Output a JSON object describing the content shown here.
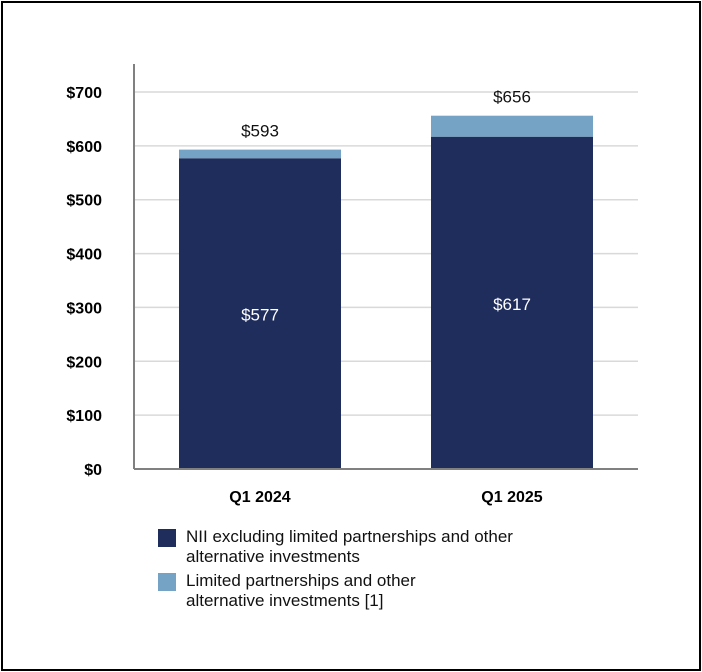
{
  "chart_data": {
    "type": "bar",
    "stacked": true,
    "categories": [
      "Q1 2024",
      "Q1 2025"
    ],
    "series": [
      {
        "name": "NII excluding limited partnerships and other alternative investments",
        "values": [
          577,
          617
        ],
        "color": "#1f2d5c",
        "labels": [
          "$577",
          "$617"
        ]
      },
      {
        "name": "Limited partnerships and other alternative investments [1]",
        "values": [
          16,
          39
        ],
        "color": "#75a3c5"
      }
    ],
    "totals": [
      593,
      656
    ],
    "total_labels": [
      "$593",
      "$656"
    ],
    "ylim": [
      0,
      700
    ],
    "yticks": [
      0,
      100,
      200,
      300,
      400,
      500,
      600,
      700
    ],
    "ytick_labels": [
      "$0",
      "$100",
      "$200",
      "$300",
      "$400",
      "$500",
      "$600",
      "$700"
    ],
    "grid": true,
    "legend_position": "bottom"
  },
  "legend": {
    "item1_line1": "NII excluding limited partnerships and other",
    "item1_line2": "alternative investments",
    "item2_line1": "Limited partnerships and other",
    "item2_line2": "alternative investments [1]"
  }
}
